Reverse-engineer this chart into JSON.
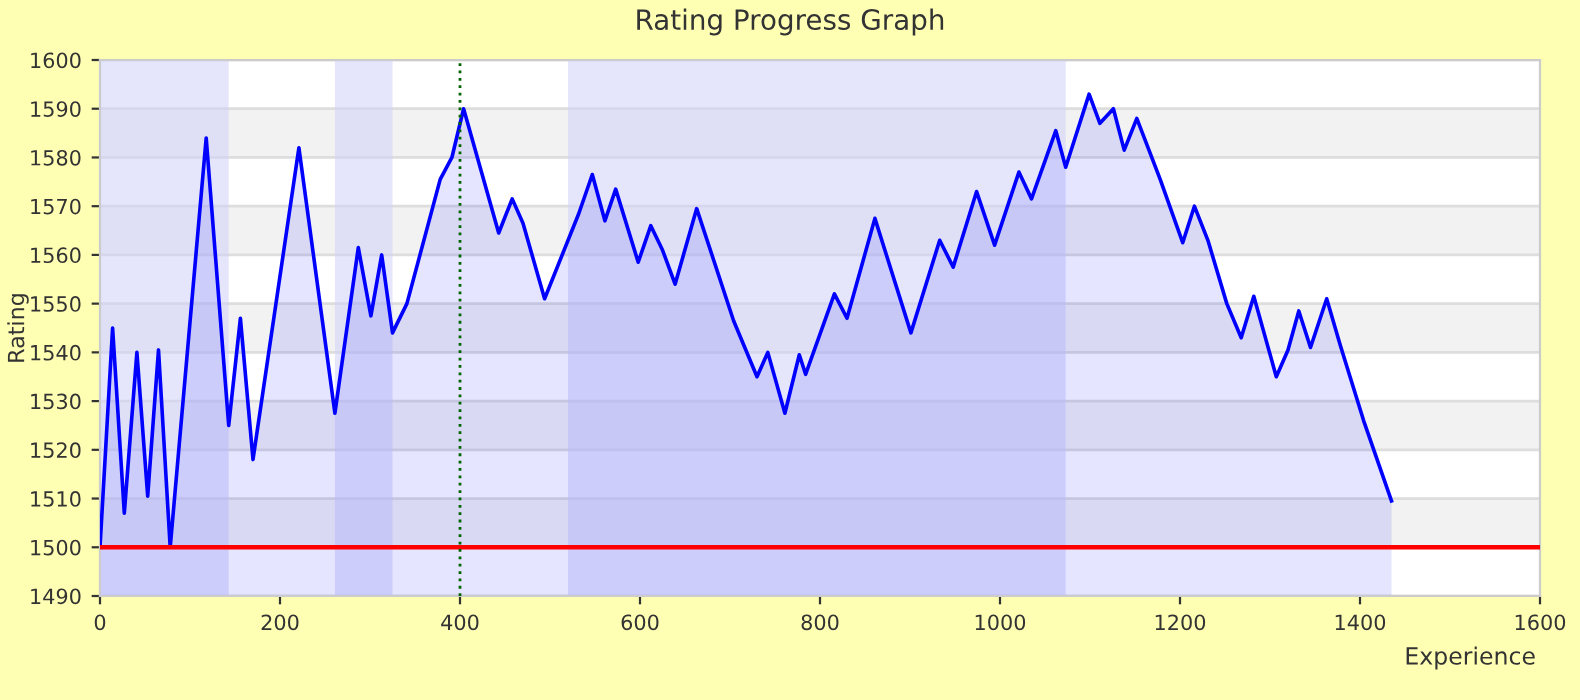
{
  "chart_data": {
    "type": "area",
    "title": "Rating Progress Graph",
    "xlabel": "Experience",
    "ylabel": "Rating",
    "series": [
      {
        "color": "#0000ff",
        "x": [
          0,
          14,
          27,
          41,
          53,
          65,
          78,
          118,
          143,
          156,
          170,
          221,
          261,
          287,
          301,
          313,
          325,
          341,
          378,
          391,
          404,
          443,
          458,
          470,
          494,
          532,
          547,
          561,
          573,
          598,
          612,
          625,
          639,
          663,
          704,
          730,
          742,
          761,
          777,
          784,
          816,
          830,
          861,
          901,
          933,
          948,
          974,
          994,
          1021,
          1035,
          1062,
          1073,
          1099,
          1111,
          1126,
          1138,
          1152,
          1178,
          1203,
          1216,
          1231,
          1252,
          1268,
          1282,
          1307,
          1320,
          1332,
          1345,
          1363,
          1378,
          1404,
          1435
        ],
        "values": [
          1500,
          1545,
          1507,
          1540,
          1510.5,
          1540.5,
          1500,
          1584,
          1525,
          1547,
          1518,
          1582,
          1527.5,
          1561.5,
          1547.5,
          1560,
          1544,
          1550,
          1575.5,
          1580,
          1590,
          1564.5,
          1571.5,
          1566.5,
          1551,
          1568.5,
          1576.5,
          1567,
          1573.5,
          1558.5,
          1566,
          1561,
          1554,
          1569.5,
          1546.5,
          1535,
          1540,
          1527.5,
          1539.5,
          1535.5,
          1552,
          1547,
          1567.5,
          1544,
          1563,
          1557.5,
          1573,
          1562,
          1577,
          1571.5,
          1585.5,
          1578,
          1593,
          1587,
          1590,
          1581.5,
          1588,
          1575.5,
          1562.5,
          1570,
          1563,
          1550,
          1543,
          1551.5,
          1535,
          1540.5,
          1548.5,
          1541,
          1551,
          1541.5,
          1526,
          1509.5
        ]
      }
    ],
    "xlim": [
      0,
      1600
    ],
    "ylim": [
      1490,
      1600
    ],
    "xticks": [
      0,
      200,
      400,
      600,
      800,
      1000,
      1200,
      1400,
      1600
    ],
    "yticks": [
      1490,
      1500,
      1510,
      1520,
      1530,
      1540,
      1550,
      1560,
      1570,
      1580,
      1590,
      1600
    ],
    "grid": "y",
    "ref_lines": [
      {
        "axis": "y",
        "value": 1500,
        "color": "#ff0000",
        "line_style": "solid"
      },
      {
        "axis": "x",
        "value": 400,
        "color": "#006400",
        "line_style": "dotted"
      }
    ],
    "bands": [
      {
        "axis": "x",
        "from": 0,
        "to": 143,
        "color": "#cfcffa"
      },
      {
        "axis": "x",
        "from": 261,
        "to": 325,
        "color": "#cfcffa"
      },
      {
        "axis": "x",
        "from": 520,
        "to": 1073,
        "color": "#cfcffa"
      }
    ]
  }
}
